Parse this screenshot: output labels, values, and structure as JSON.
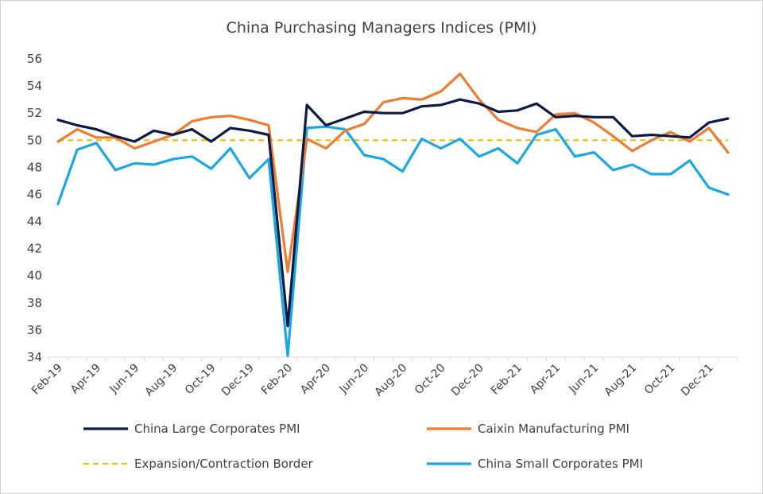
{
  "chart_data": {
    "type": "line",
    "title": "China Purchasing Managers Indices (PMI)",
    "xlabel": "",
    "ylabel": "",
    "ylim": [
      34,
      56
    ],
    "yticks": [
      34,
      36,
      38,
      40,
      42,
      44,
      46,
      48,
      50,
      52,
      54,
      56
    ],
    "grid": false,
    "legend_position": "bottom",
    "x": [
      "Feb-19",
      "Mar-19",
      "Apr-19",
      "May-19",
      "Jun-19",
      "Jul-19",
      "Aug-19",
      "Sep-19",
      "Oct-19",
      "Nov-19",
      "Dec-19",
      "Jan-20",
      "Feb-20",
      "Mar-20",
      "Apr-20",
      "May-20",
      "Jun-20",
      "Jul-20",
      "Aug-20",
      "Sep-20",
      "Oct-20",
      "Nov-20",
      "Dec-20",
      "Jan-21",
      "Feb-21",
      "Mar-21",
      "Apr-21",
      "May-21",
      "Jun-21",
      "Jul-21",
      "Aug-21",
      "Sep-21",
      "Oct-21",
      "Nov-21",
      "Dec-21",
      "Jan-22"
    ],
    "xtick_labels": [
      "Feb-19",
      "Apr-19",
      "Jun-19",
      "Aug-19",
      "Oct-19",
      "Dec-19",
      "Feb-20",
      "Apr-20",
      "Jun-20",
      "Aug-20",
      "Oct-20",
      "Dec-20",
      "Feb-21",
      "Apr-21",
      "Jun-21",
      "Aug-21",
      "Oct-21",
      "Dec-21"
    ],
    "series": [
      {
        "name": "China Large Corporates PMI",
        "color": "#0d1a45",
        "style": "solid",
        "values": [
          51.5,
          51.1,
          50.8,
          50.3,
          49.9,
          50.7,
          50.4,
          50.8,
          49.9,
          50.9,
          50.7,
          50.4,
          36.3,
          52.6,
          51.1,
          51.6,
          52.1,
          52.0,
          52.0,
          52.5,
          52.6,
          53.0,
          52.7,
          52.1,
          52.2,
          52.7,
          51.7,
          51.8,
          51.7,
          51.7,
          50.3,
          50.4,
          50.3,
          50.2,
          51.3,
          51.6
        ]
      },
      {
        "name": "Caixin Manufacturing PMI",
        "color": "#ed7d31",
        "style": "solid",
        "values": [
          49.9,
          50.8,
          50.2,
          50.2,
          49.4,
          49.9,
          50.4,
          51.4,
          51.7,
          51.8,
          51.5,
          51.1,
          40.3,
          50.1,
          49.4,
          50.7,
          51.2,
          52.8,
          53.1,
          53.0,
          53.6,
          54.9,
          53.0,
          51.5,
          50.9,
          50.6,
          51.9,
          52.0,
          51.3,
          50.3,
          49.2,
          50.0,
          50.6,
          49.9,
          50.9,
          49.1
        ]
      },
      {
        "name": "Expansion/Contraction Border",
        "color": "#f2b800",
        "style": "dashed",
        "values": [
          50,
          50,
          50,
          50,
          50,
          50,
          50,
          50,
          50,
          50,
          50,
          50,
          50,
          50,
          50,
          50,
          50,
          50,
          50,
          50,
          50,
          50,
          50,
          50,
          50,
          50,
          50,
          50,
          50,
          50,
          50,
          50,
          50,
          50,
          50,
          50
        ]
      },
      {
        "name": "China Small Corporates PMI",
        "color": "#1aa7e6",
        "style": "solid",
        "values": [
          45.3,
          49.3,
          49.8,
          47.8,
          48.3,
          48.2,
          48.6,
          48.8,
          47.9,
          49.4,
          47.2,
          48.6,
          34.1,
          50.9,
          51.0,
          50.8,
          48.9,
          48.6,
          47.7,
          50.1,
          49.4,
          50.1,
          48.8,
          49.4,
          48.3,
          50.4,
          50.8,
          48.8,
          49.1,
          47.8,
          48.2,
          47.5,
          47.5,
          48.5,
          46.5,
          46.0
        ]
      }
    ],
    "legend": [
      "China Large Corporates PMI",
      "Caixin Manufacturing PMI",
      "Expansion/Contraction Border",
      "China Small Corporates PMI"
    ]
  }
}
